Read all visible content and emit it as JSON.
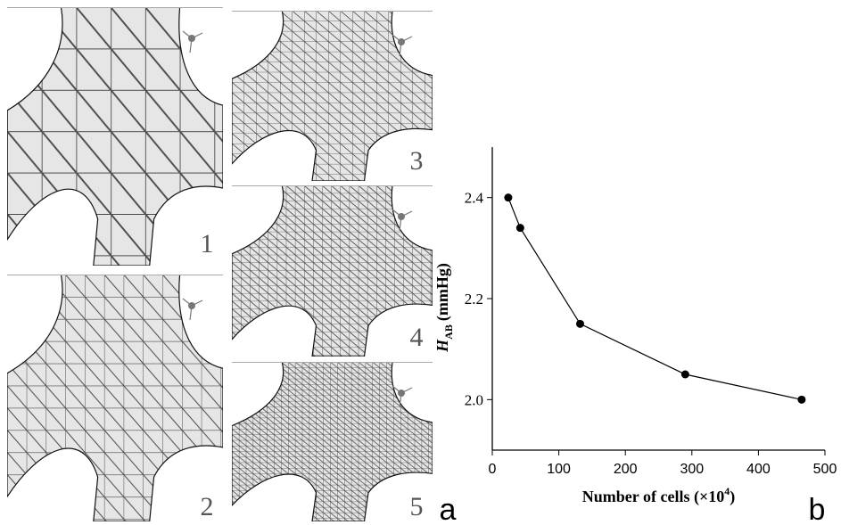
{
  "figure": {
    "mesh_labels": [
      "1",
      "2",
      "3",
      "4",
      "5"
    ],
    "panel_a_label": "a",
    "panel_b_label": "b"
  },
  "chart_data": {
    "type": "line",
    "x_label": {
      "text": "Number of cells (×10",
      "superscript": "4",
      "close": ")"
    },
    "y_label": {
      "symbol": "H",
      "subscript": "AB",
      "unit": "(mmHg)"
    },
    "x": [
      24,
      42,
      132,
      290,
      465
    ],
    "series": [
      {
        "color": "#000000",
        "values": [
          2.4,
          2.34,
          2.15,
          2.05,
          2.0
        ]
      }
    ],
    "xlim": [
      0,
      500
    ],
    "xticks": [
      0,
      100,
      200,
      300,
      400,
      500
    ],
    "ylim": [
      1.9,
      2.5
    ],
    "yticks": [
      {
        "value": 2,
        "label": "2.0"
      },
      2.2,
      2.4
    ],
    "grid": false
  }
}
